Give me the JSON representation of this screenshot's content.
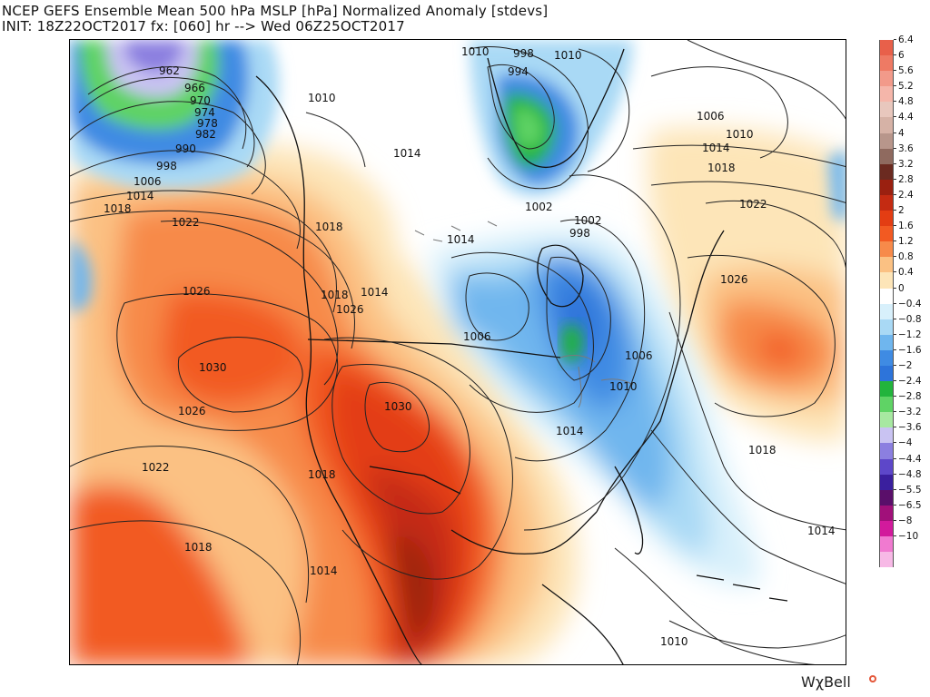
{
  "header": {
    "title_line1": "NCEP GEFS Ensemble Mean 500 hPa MSLP [hPa] Normalized Anomaly [stdevs]",
    "title_line2": "INIT: 18Z22OCT2017 fx: [060] hr --> Wed 06Z25OCT2017"
  },
  "legend": {
    "title": "",
    "items": [
      {
        "label": "6.4",
        "color": "#e8604a"
      },
      {
        "label": "6",
        "color": "#ee7a64"
      },
      {
        "label": "5.6",
        "color": "#f29a8a"
      },
      {
        "label": "5.2",
        "color": "#f5b6aa"
      },
      {
        "label": "4.8",
        "color": "#e8c7bd"
      },
      {
        "label": "4.4",
        "color": "#d6b2a6"
      },
      {
        "label": "4",
        "color": "#b8968b"
      },
      {
        "label": "3.6",
        "color": "#8f6a5f"
      },
      {
        "label": "3.2",
        "color": "#6b2a20"
      },
      {
        "label": "2.8",
        "color": "#9a2010"
      },
      {
        "label": "2.4",
        "color": "#c42b12"
      },
      {
        "label": "2",
        "color": "#e33d13"
      },
      {
        "label": "1.6",
        "color": "#f25a22"
      },
      {
        "label": "1.2",
        "color": "#f78a4a"
      },
      {
        "label": "0.8",
        "color": "#fbc183"
      },
      {
        "label": "0.4",
        "color": "#fde5b8"
      },
      {
        "label": "0",
        "color": "#ffffff"
      },
      {
        "label": "−0.4",
        "color": "#d8f0fb"
      },
      {
        "label": "−0.8",
        "color": "#a9d9f5"
      },
      {
        "label": "−1.2",
        "color": "#6fb6ee"
      },
      {
        "label": "−1.6",
        "color": "#3f8be3"
      },
      {
        "label": "−2",
        "color": "#2d74da"
      },
      {
        "label": "−2.4",
        "color": "#22b43c"
      },
      {
        "label": "−2.8",
        "color": "#5fd365"
      },
      {
        "label": "−3.2",
        "color": "#a7e8a1"
      },
      {
        "label": "−3.6",
        "color": "#c9c3f2"
      },
      {
        "label": "−4",
        "color": "#8b7fe0"
      },
      {
        "label": "−4.4",
        "color": "#5d47c9"
      },
      {
        "label": "−4.8",
        "color": "#3a1f9e"
      },
      {
        "label": "−5.5",
        "color": "#5a0f6a"
      },
      {
        "label": "−6.5",
        "color": "#a1107a"
      },
      {
        "label": "−8",
        "color": "#d21a9c"
      },
      {
        "label": "−10",
        "color": "#f07ad0"
      },
      {
        "label": "",
        "color": "#f7b9e6"
      }
    ]
  },
  "isobar_labels": [
    "962",
    "966",
    "970",
    "974",
    "978",
    "982",
    "990",
    "998",
    "1006",
    "1014",
    "1018",
    "1022",
    "1026",
    "1030",
    "1026",
    "1022",
    "1018",
    "1014",
    "1010",
    "1014",
    "1018",
    "1018",
    "1014",
    "1026",
    "1030",
    "1006",
    "1018",
    "1014",
    "1010",
    "998",
    "994",
    "1010",
    "1002",
    "1002",
    "998",
    "1014",
    "1006",
    "1010",
    "1006",
    "1010",
    "1014",
    "1018",
    "1022",
    "1026",
    "1018",
    "1014",
    "1010"
  ],
  "colors": {
    "coastline": "#111111",
    "lakes": "#7a7a7a",
    "isobar": "#222222"
  },
  "branding": {
    "text": "WχBell"
  }
}
